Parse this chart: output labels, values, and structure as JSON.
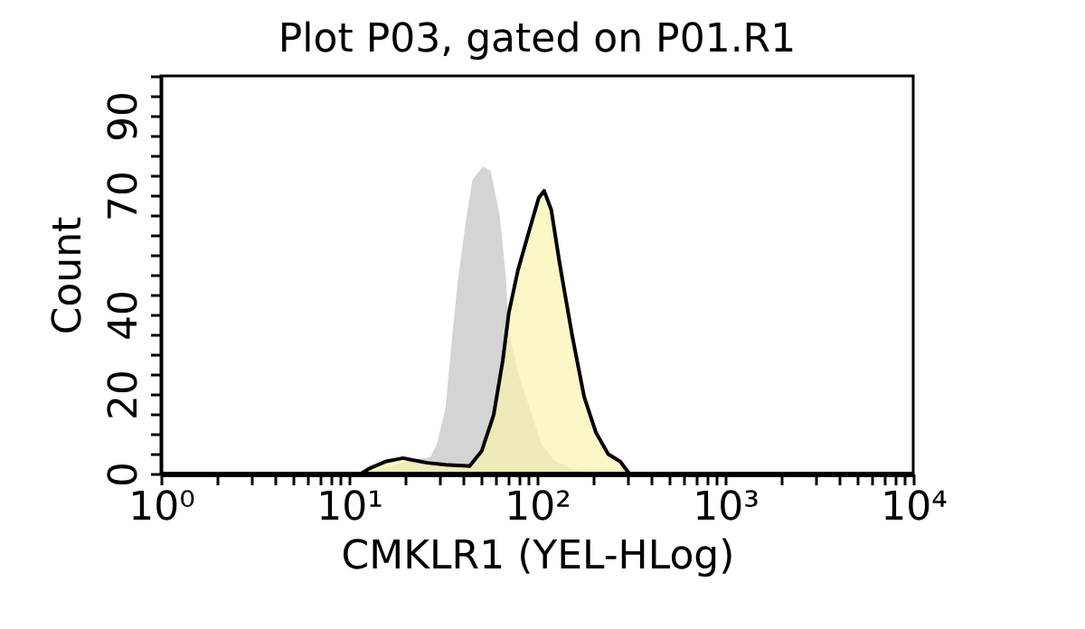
{
  "chart_data": {
    "type": "area",
    "title": "Plot P03, gated on P01.R1",
    "xlabel": "CMKLR1 (YEL-HLog)",
    "ylabel": "Count",
    "log": "x",
    "xlim": [
      1,
      10000
    ],
    "xticks": [
      {
        "value": 1,
        "label": "10⁰"
      },
      {
        "value": 2,
        "label": null
      },
      {
        "value": 3,
        "label": null
      },
      {
        "value": 4,
        "label": null
      },
      {
        "value": 5,
        "label": null
      },
      {
        "value": 6,
        "label": null
      },
      {
        "value": 7,
        "label": null
      },
      {
        "value": 8,
        "label": null
      },
      {
        "value": 9,
        "label": null
      },
      {
        "value": 10,
        "label": "10¹"
      },
      {
        "value": 20,
        "label": null
      },
      {
        "value": 30,
        "label": null
      },
      {
        "value": 40,
        "label": null
      },
      {
        "value": 50,
        "label": null
      },
      {
        "value": 60,
        "label": null
      },
      {
        "value": 70,
        "label": null
      },
      {
        "value": 80,
        "label": null
      },
      {
        "value": 90,
        "label": null
      },
      {
        "value": 100,
        "label": "10²"
      },
      {
        "value": 200,
        "label": null
      },
      {
        "value": 300,
        "label": null
      },
      {
        "value": 400,
        "label": null
      },
      {
        "value": 500,
        "label": null
      },
      {
        "value": 600,
        "label": null
      },
      {
        "value": 700,
        "label": null
      },
      {
        "value": 800,
        "label": null
      },
      {
        "value": 900,
        "label": null
      },
      {
        "value": 1000,
        "label": "10³"
      },
      {
        "value": 2000,
        "label": null
      },
      {
        "value": 3000,
        "label": null
      },
      {
        "value": 4000,
        "label": null
      },
      {
        "value": 5000,
        "label": null
      },
      {
        "value": 6000,
        "label": null
      },
      {
        "value": 7000,
        "label": null
      },
      {
        "value": 8000,
        "label": null
      },
      {
        "value": 9000,
        "label": null
      },
      {
        "value": 10000,
        "label": "10⁴"
      }
    ],
    "ylim": [
      0,
      100
    ],
    "yticks": [
      0,
      {
        "value": 5,
        "label": null
      },
      {
        "value": 10,
        "label": null
      },
      {
        "value": 15,
        "label": null
      },
      20,
      {
        "value": 25,
        "label": null
      },
      {
        "value": 30,
        "label": null
      },
      {
        "value": 35,
        "label": null
      },
      40,
      {
        "value": 45,
        "label": null
      },
      {
        "value": 50,
        "label": null
      },
      {
        "value": 55,
        "label": null
      },
      {
        "value": 60,
        "label": null
      },
      {
        "value": 65,
        "label": null
      },
      70,
      {
        "value": 75,
        "label": null
      },
      {
        "value": 80,
        "label": null
      },
      {
        "value": 85,
        "label": null
      },
      90,
      {
        "value": 95,
        "label": null
      },
      {
        "value": 100,
        "label": null
      }
    ],
    "grid": false,
    "series": [
      {
        "color": "#d4d4d4",
        "x": [
          11.6,
          22.5,
          27.1,
          29.2,
          32.6,
          35.1,
          37.8,
          42.2,
          45.4,
          51.5,
          56.7,
          63.4,
          68.2,
          70.8,
          79.1,
          91.6,
          106,
          123,
          154,
          192
        ],
        "values": [
          0,
          3.4,
          4.2,
          7.2,
          16.3,
          33,
          48.1,
          64.8,
          73.9,
          77.2,
          76.1,
          64.8,
          49.6,
          36,
          25.4,
          16.3,
          7.2,
          3.4,
          1.1,
          0
        ]
      },
      {
        "color": "#f9f4ae",
        "x": [
          11.6,
          13,
          15.6,
          19.4,
          21.7,
          26.1,
          32.6,
          43.8,
          50.8,
          58.8,
          65.7,
          70.8,
          79.1,
          91.6,
          102,
          109,
          119,
          132,
          154,
          178,
          206,
          239,
          277,
          309
        ],
        "values": [
          0,
          1.4,
          3,
          3.9,
          3.4,
          2.7,
          2.2,
          1.9,
          5.7,
          14.8,
          28.4,
          40.5,
          51.1,
          61.7,
          69.3,
          71.1,
          66.3,
          52.7,
          34.5,
          19.3,
          10.2,
          4.9,
          3,
          0
        ]
      }
    ]
  }
}
